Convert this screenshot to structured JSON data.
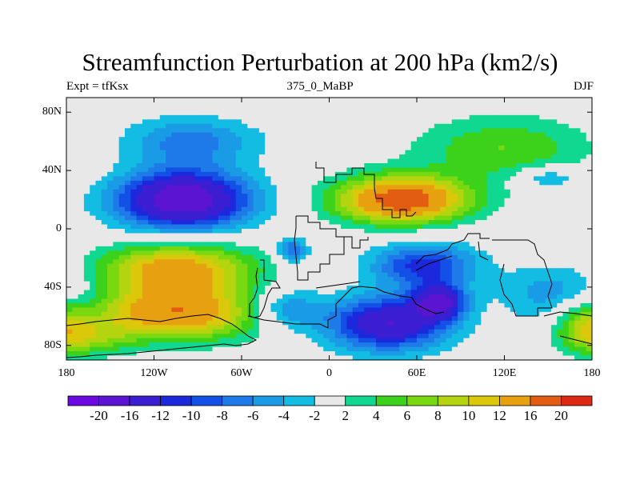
{
  "chart_data": {
    "type": "contour-map",
    "title": "Streamfunction Perturbation at 200 hPa (km2/s)",
    "subtitle_left": "Expt = tfKsx",
    "subtitle_center": "375_0_MaBP",
    "subtitle_right": "DJF",
    "xlim": [
      -180,
      180
    ],
    "ylim": [
      -90,
      90
    ],
    "x_ticks": [
      {
        "value": -180,
        "label": "180"
      },
      {
        "value": -120,
        "label": "120W"
      },
      {
        "value": -60,
        "label": "60W"
      },
      {
        "value": 0,
        "label": "0"
      },
      {
        "value": 60,
        "label": "60E"
      },
      {
        "value": 120,
        "label": "120E"
      },
      {
        "value": 180,
        "label": "180"
      }
    ],
    "y_ticks": [
      {
        "value": 80,
        "label": "80N"
      },
      {
        "value": 40,
        "label": "40N"
      },
      {
        "value": 0,
        "label": "0"
      },
      {
        "value": -40,
        "label": "40S"
      },
      {
        "value": -80,
        "label": "80S"
      }
    ],
    "colorbar": {
      "levels": [
        "-20",
        "-16",
        "-12",
        "-10",
        "-8",
        "-6",
        "-4",
        "-2",
        "2",
        "4",
        "6",
        "8",
        "10",
        "12",
        "16",
        "20"
      ],
      "level_values": [
        -20,
        -16,
        -12,
        -10,
        -8,
        -6,
        -4,
        -2,
        2,
        4,
        6,
        8,
        10,
        12,
        16,
        20
      ],
      "colors": [
        "#6a0ae0",
        "#5a14d2",
        "#3c1ed2",
        "#1c28dc",
        "#1250e6",
        "#1e7ae8",
        "#1a9be6",
        "#12bce2",
        "#e8e8e8",
        "#10d890",
        "#3cd21c",
        "#7ad810",
        "#b4d410",
        "#dcc80a",
        "#e6a010",
        "#e25c12",
        "#dc2810"
      ]
    },
    "features": [
      {
        "lon": -95,
        "lat": 60,
        "value": -7,
        "rlon": 45,
        "rlat": 16
      },
      {
        "lon": -100,
        "lat": 20,
        "value": -20,
        "rlon": 45,
        "rlat": 20
      },
      {
        "lon": -105,
        "lat": -28,
        "value": 14,
        "rlon": 52,
        "rlat": 18
      },
      {
        "lon": -105,
        "lat": -58,
        "value": 15,
        "rlon": 60,
        "rlat": 18
      },
      {
        "lon": -165,
        "lat": -75,
        "value": 6,
        "rlon": 30,
        "rlat": 12
      },
      {
        "lon": 50,
        "lat": 20,
        "value": 19,
        "rlon": 45,
        "rlat": 16
      },
      {
        "lon": 120,
        "lat": 55,
        "value": 6,
        "rlon": 60,
        "rlat": 22
      },
      {
        "lon": 150,
        "lat": 35,
        "value": -5,
        "rlon": 22,
        "rlat": 8
      },
      {
        "lon": 65,
        "lat": -25,
        "value": -11,
        "rlon": 35,
        "rlat": 15
      },
      {
        "lon": 40,
        "lat": -65,
        "value": -16,
        "rlon": 40,
        "rlat": 18
      },
      {
        "lon": 75,
        "lat": -50,
        "value": -15,
        "rlon": 18,
        "rlat": 12
      },
      {
        "lon": -30,
        "lat": -55,
        "value": -7,
        "rlon": 25,
        "rlat": 15
      },
      {
        "lon": -25,
        "lat": -15,
        "value": -9,
        "rlon": 10,
        "rlat": 8
      },
      {
        "lon": 160,
        "lat": -45,
        "value": -6,
        "rlon": 40,
        "rlat": 20
      },
      {
        "lon": 175,
        "lat": -65,
        "value": 8,
        "rlon": 20,
        "rlat": 18
      }
    ]
  }
}
